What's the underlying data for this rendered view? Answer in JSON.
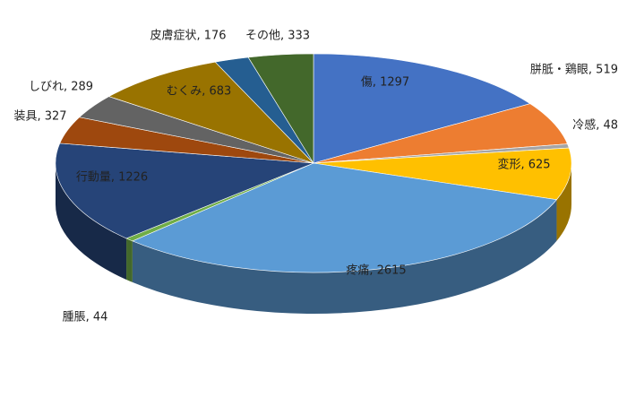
{
  "chart_data": {
    "type": "pie3d",
    "categories": [
      "傷",
      "胼胝・鶏眼",
      "冷感",
      "変形",
      "疼痛",
      "腫脹",
      "行動量",
      "装具",
      "しびれ",
      "むくみ",
      "皮膚症状",
      "その他"
    ],
    "values": [
      1297,
      519,
      48,
      625,
      2615,
      44,
      1226,
      327,
      289,
      683,
      176,
      333
    ],
    "value_labels": [
      "傷, 1297",
      "胼胝・鶏眼, 519",
      "冷感, 48",
      "変形, 625",
      "疼痛, 2615",
      "腫脹, 44",
      "行動量, 1226",
      "装具, 327",
      "しびれ, 289",
      "むくみ, 683",
      "皮膚症状, 176",
      "その他, 333"
    ],
    "colors": [
      "#4472c4",
      "#ed7d31",
      "#a5a5a5",
      "#ffc000",
      "#5b9bd5",
      "#70ad47",
      "#264478",
      "#9e480e",
      "#636363",
      "#997300",
      "#255e91",
      "#43682b"
    ]
  }
}
